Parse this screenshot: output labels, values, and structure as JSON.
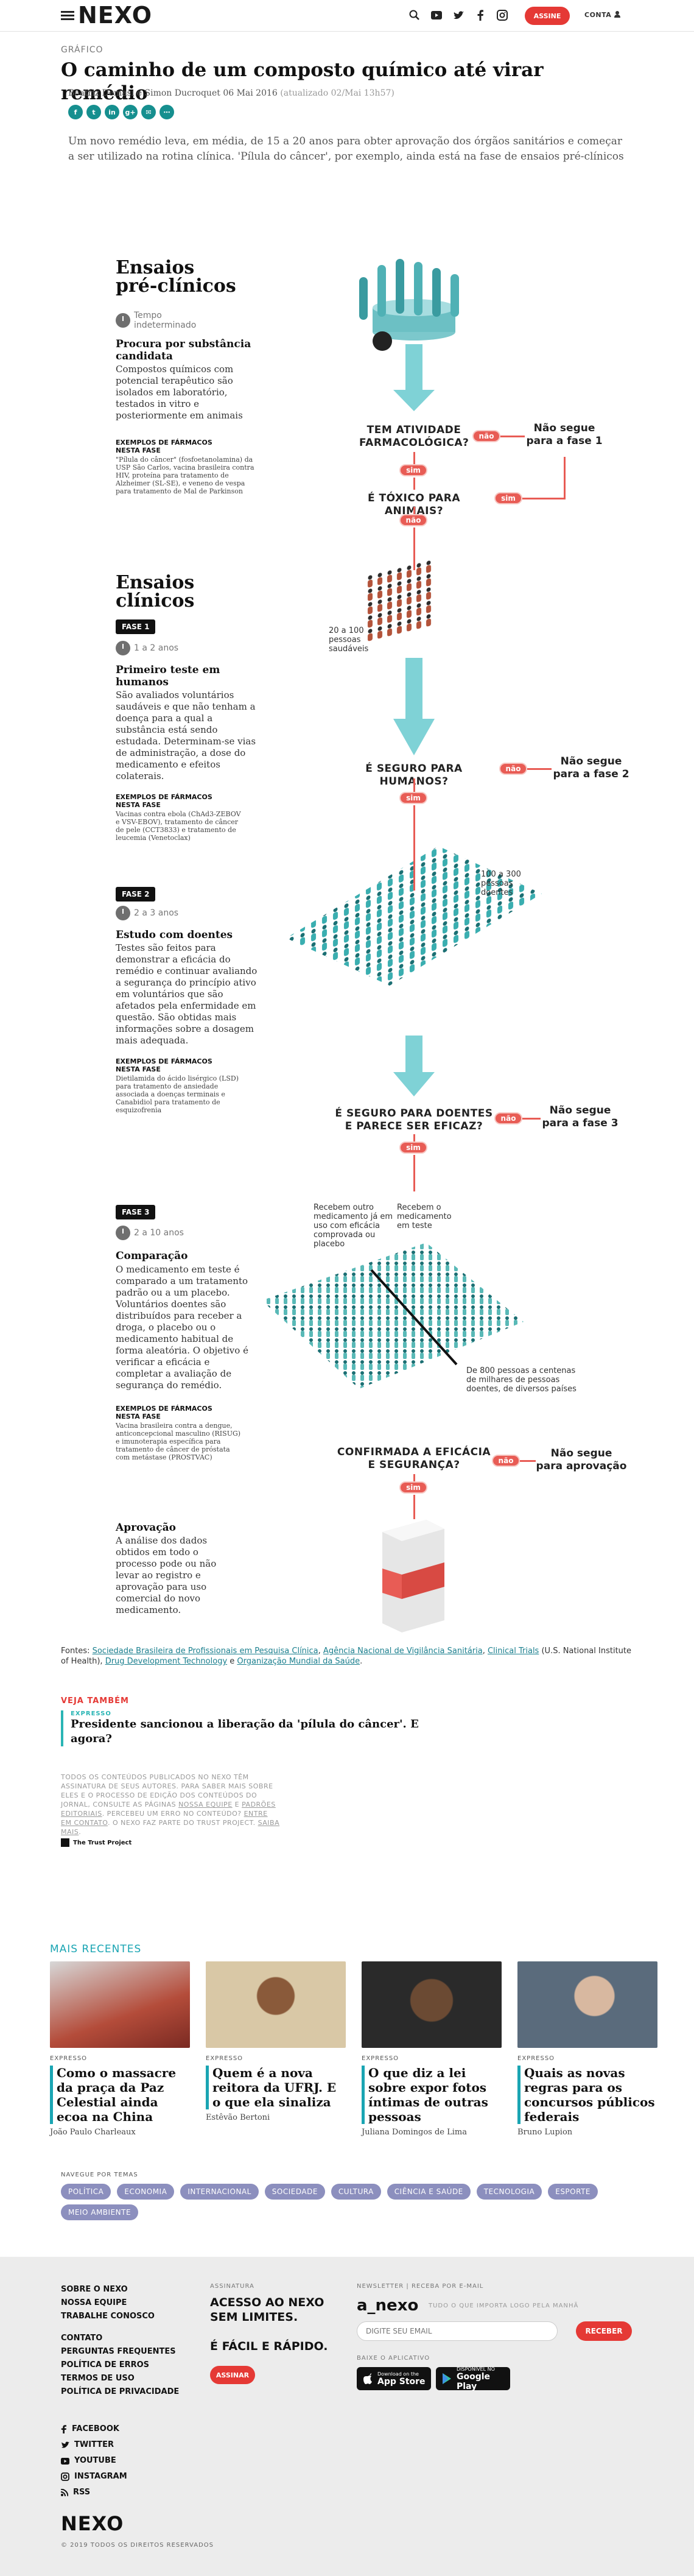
{
  "header": {
    "logo": "NEXO",
    "assine": "ASSINE",
    "conta": "CONTA"
  },
  "article": {
    "kicker": "GRÁFICO",
    "title": "O caminho de um composto químico até virar remédio",
    "byline": "Beatriz Demasi e Simon Ducroquet",
    "date": "06 Mai 2016",
    "updated": "(atualizado 02/Mai 13h57)",
    "share": [
      "f",
      "t",
      "in",
      "g+",
      "✉",
      "⋯"
    ],
    "lead": "Um novo remédio leva, em média, de 15 a 20 anos para obter aprovação dos órgãos sanitários e começar a ser utilizado na rotina clínica. 'Pílula do câncer', por exemplo, ainda está na fase de ensaios pré-clínicos"
  },
  "preclinical": {
    "title_1": "Ensaios",
    "title_2": "pré-clínicos",
    "time_1": "Tempo",
    "time_2": "indeterminado",
    "heading": "Procura por substância candidata",
    "body": "Compostos químicos com potencial terapêutico são isolados em laboratório, testados in vitro e posteriormente em animais",
    "ex_heading": "EXEMPLOS DE FÁRMACOS NESTA FASE",
    "ex_body": "\"Pílula do câncer\" (fosfoetanolamina) da USP São Carlos, vacina brasileira contra HIV, proteína para tratamento de Alzheimer (SL-SE), e veneno de vespa para tratamento de Mal de Parkinson"
  },
  "flow": {
    "q1": "TEM ATIVIDADE FARMACOLÓGICA?",
    "q2": "É TÓXICO PARA ANIMAIS?",
    "q3": "É SEGURO PARA HUMANOS?",
    "q4": "É SEGURO PARA DOENTES E PARECE SER EFICAZ?",
    "q5": "CONFIRMADA A EFICÁCIA E SEGURANÇA?",
    "sim": "sim",
    "nao": "não",
    "stop1": "Não segue para a fase 1",
    "stop2": "Não segue para a fase 2",
    "stop3": "Não segue para a fase 3",
    "stop4": "Não segue para aprovação"
  },
  "clinical": {
    "title_1": "Ensaios",
    "title_2": "clínicos",
    "phase1": {
      "label": "FASE 1",
      "time": "1 a 2 anos",
      "heading": "Primeiro teste em humanos",
      "body": "São avaliados voluntários saudáveis e que não tenham a doença para a qual a substância está sendo estudada. Determinam-se vias de administração, a dose do medicamento e efeitos colaterais.",
      "ex_heading": "EXEMPLOS DE FÁRMACOS NESTA FASE",
      "ex_body": "Vacinas contra ebola (ChAd3-ZEBOV e VSV-EBOV), tratamento de câncer de pele (CCT3833) e tratamento de leucemia (Venetoclax)",
      "people": "20 a 100 pessoas saudáveis"
    },
    "phase2": {
      "label": "FASE 2",
      "time": "2 a 3 anos",
      "heading": "Estudo com doentes",
      "body": "Testes são feitos para demonstrar a eficácia do remédio e continuar avaliando a segurança do princípio ativo em voluntários que são afetados pela enfermidade em questão. São obtidas mais informações sobre a dosagem mais adequada.",
      "ex_heading": "EXEMPLOS DE FÁRMACOS NESTA FASE",
      "ex_body": "Dietilamida do ácido lisérgico (LSD) para tratamento de ansiedade associada a doenças terminais e Canabidiol para tratamento de esquizofrenia",
      "people": "100 a 300 pessoas doentes"
    },
    "phase3": {
      "label": "FASE 3",
      "time": "2 a 10 anos",
      "heading": "Comparação",
      "body": "O medicamento em teste é comparado a um tratamento padrão ou a um placebo. Voluntários doentes são distribuídos para receber a droga, o placebo ou o medicamento habitual de forma aleatória. O objetivo é verificar a eficácia e completar a avaliação de segurança do remédio.",
      "ex_heading": "EXEMPLOS DE FÁRMACOS NESTA FASE",
      "ex_body": "Vacina brasileira contra a dengue, anticoncepcional masculino (RISUG) e imunoterapia específica para tratamento de câncer de próstata com metástase (PROSTVAC)",
      "label_left": "Recebem outro medicamento já em uso com eficácia comprovada ou placebo",
      "label_right": "Recebem o medicamento em teste",
      "people": "De 800 pessoas a centenas de milhares de pessoas doentes, de diversos países"
    },
    "approval": {
      "heading": "Aprovação",
      "body": "A análise dos dados obtidos em todo o processo pode ou não levar ao registro e aprovação para uso comercial do novo medicamento."
    }
  },
  "sources": {
    "prefix": "Fontes: ",
    "s1": "Sociedade Brasileira de Profissionais em Pesquisa Clínica",
    "s2": "Agência Nacional de Vigilância Sanitária",
    "s3": "Clinical Trials",
    "s3b": " (U.S. National Institute of Health), ",
    "s4": "Drug Development Technology",
    "and": " e ",
    "s5": "Organização Mundial da Saúde"
  },
  "veja": {
    "heading": "VEJA TAMBÉM",
    "tag": "EXPRESSO",
    "title": "Presidente sancionou a liberação da 'pílula do câncer'. E agora?"
  },
  "disclaimer": {
    "t1": "TODOS OS CONTEÚDOS PUBLICADOS NO NEXO TÊM ASSINATURA DE SEUS AUTORES. PARA SABER MAIS SOBRE ELES E O PROCESSO DE EDIÇÃO DOS CONTEÚDOS DO JORNAL, CONSULTE AS PÁGINAS ",
    "l1": "NOSSA EQUIPE",
    "t2": " E ",
    "l2": "PADRÕES EDITORIAIS",
    "t3": ". PERCEBEU UM ERRO NO CONTEÚDO? ",
    "l3": "ENTRE EM CONTATO",
    "t4": ". O NEXO FAZ PARTE DO TRUST PROJECT. ",
    "l4": "SAIBA MAIS",
    "t5": ".",
    "trust": "The Trust Project"
  },
  "recent": {
    "heading": "MAIS RECENTES",
    "items": [
      {
        "tag": "EXPRESSO",
        "title": "Como o massacre da praça da Paz Celestial ainda ecoa na China",
        "author": "João Paulo Charleaux",
        "color": "#b44c3a"
      },
      {
        "tag": "EXPRESSO",
        "title": "Quem é a nova reitora da UFRJ. E o que ela sinaliza",
        "author": "Estêvão Bertoni",
        "color": "#d9c8a6"
      },
      {
        "tag": "EXPRESSO",
        "title": "O que diz a lei sobre expor fotos íntimas de outras pessoas",
        "author": "Juliana Domingos de Lima",
        "color": "#2a2a2a"
      },
      {
        "tag": "EXPRESSO",
        "title": "Quais as novas regras para os concursos públicos federais",
        "author": "Bruno Lupion",
        "color": "#5a6b7c"
      }
    ]
  },
  "topics": {
    "heading": "NAVEGUE POR TEMAS",
    "items": [
      "POLÍTICA",
      "ECONOMIA",
      "INTERNACIONAL",
      "SOCIEDADE",
      "CULTURA",
      "CIÊNCIA E SAÚDE",
      "TECNOLOGIA",
      "ESPORTE",
      "MEIO AMBIENTE"
    ]
  },
  "footer": {
    "links1": [
      "SOBRE O NEXO",
      "NOSSA EQUIPE",
      "TRABALHE CONOSCO"
    ],
    "links2": [
      "CONTATO",
      "PERGUNTAS FREQUENTES",
      "POLÍTICA DE ERROS",
      "TERMOS DE USO",
      "POLÍTICA DE PRIVACIDADE"
    ],
    "assinatura_h": "ASSINATURA",
    "assinatura_1": "ACESSO AO NEXO",
    "assinatura_2": "SEM LIMITES.",
    "assinatura_3": "É FÁCIL E RÁPIDO.",
    "assine": "ASSINAR",
    "newsletter_h": "NEWSLETTER | RECEBA POR E-MAIL",
    "anexo": "a_nexo",
    "anexo_sub": "TUDO O QUE IMPORTA LOGO PELA MANHÃ",
    "email_ph": "DIGITE SEU EMAIL",
    "receber": "RECEBER",
    "app_h": "BAIXE O APLICATIVO",
    "appstore_small": "Download on the",
    "appstore": "App Store",
    "gplay_small": "DISPONÍVEL NO",
    "gplay": "Google Play",
    "social": [
      "FACEBOOK",
      "TWITTER",
      "YOUTUBE",
      "INSTAGRAM",
      "RSS"
    ],
    "logo": "NEXO",
    "copyright": "© 2019 TODOS OS DIREITOS RESERVADOS"
  }
}
